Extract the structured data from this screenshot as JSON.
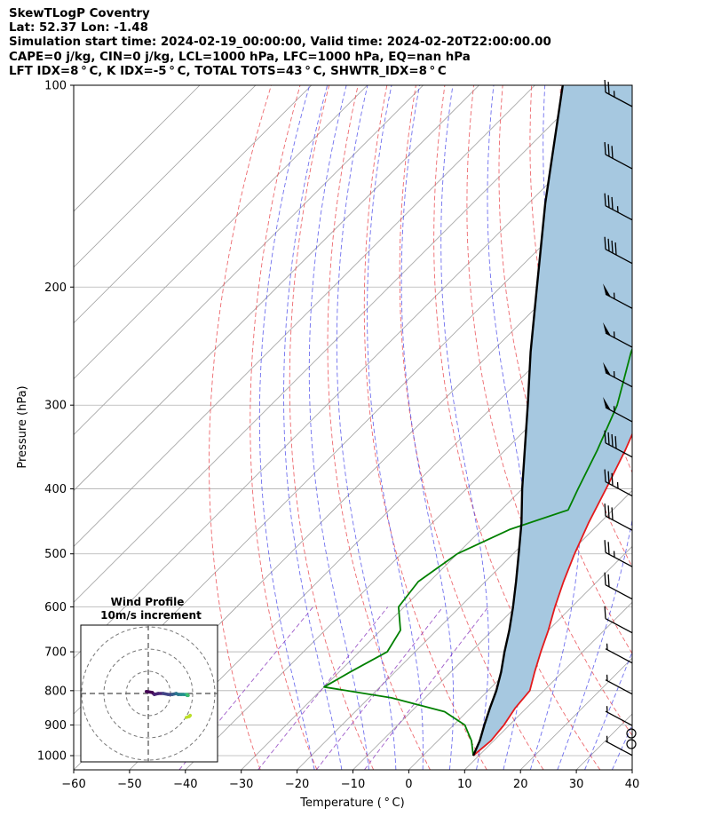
{
  "header": {
    "line1": "SkewTLogP Coventry",
    "line2": "Lat: 52.37   Lon: -1.48",
    "line3": "Simulation start time: 2024-02-19_00:00:00, Valid time: 2024-02-20T22:00:00.00",
    "line4": "CAPE=0 j/kg, CIN=0 j/kg, LCL=1000 hPa, LFC=1000 hPa, EQ=nan hPa",
    "line5": "LFT IDX=8$^\\circ$C, K IDX=-5$^\\circ$C, TOTAL TOTS=43$^\\circ$C, SHWTR_IDX=8$^\\circ$C"
  },
  "header_display": {
    "line5": "LFT IDX=8 ° C, K IDX=-5 ° C, TOTAL TOTS=43 ° C, SHWTR_IDX=8 ° C"
  },
  "chart_data": {
    "type": "line",
    "subtype": "skew-T log-P",
    "xlabel": "Temperature ( ° C)",
    "ylabel": "Pressure (hPa)",
    "xlim": [
      -60,
      40
    ],
    "ylim": [
      1050,
      100
    ],
    "yscale": "log",
    "x_ticks": [
      "−60",
      "−50",
      "−40",
      "−30",
      "−20",
      "−10",
      "0",
      "10",
      "20",
      "30",
      "40"
    ],
    "y_ticks": [
      "100",
      "200",
      "300",
      "400",
      "500",
      "600",
      "700",
      "800",
      "900",
      "1000"
    ],
    "grid": true,
    "series": [
      {
        "color": "#e41a1c",
        "points": [
          [
            1000,
            9
          ],
          [
            950,
            9.5
          ],
          [
            900,
            9
          ],
          [
            850,
            8
          ],
          [
            800,
            7.5
          ],
          [
            750,
            5
          ],
          [
            700,
            2.5
          ],
          [
            650,
            0
          ],
          [
            600,
            -3
          ],
          [
            550,
            -6
          ],
          [
            500,
            -9
          ],
          [
            450,
            -12
          ],
          [
            400,
            -15
          ],
          [
            350,
            -18.5
          ],
          [
            300,
            -23
          ],
          [
            250,
            -29
          ],
          [
            200,
            -36.5
          ],
          [
            180,
            -42
          ],
          [
            150,
            -46
          ],
          [
            120,
            -54
          ],
          [
            100,
            -60
          ]
        ]
      },
      {
        "color": "#008000",
        "points": [
          [
            1000,
            9
          ],
          [
            950,
            6
          ],
          [
            900,
            2
          ],
          [
            860,
            -4
          ],
          [
            820,
            -16
          ],
          [
            790,
            -30
          ],
          [
            750,
            -28
          ],
          [
            700,
            -25
          ],
          [
            650,
            -26.5
          ],
          [
            600,
            -31
          ],
          [
            550,
            -32
          ],
          [
            500,
            -30
          ],
          [
            460,
            -25
          ],
          [
            430,
            -18
          ],
          [
            400,
            -20
          ],
          [
            350,
            -23.5
          ],
          [
            300,
            -28
          ],
          [
            250,
            -35
          ],
          [
            200,
            -42
          ],
          [
            180,
            -42
          ],
          [
            160,
            -49
          ],
          [
            140,
            -60
          ],
          [
            120,
            -64
          ],
          [
            100,
            -76
          ]
        ]
      },
      {
        "color": "#000000",
        "points": [
          [
            1000,
            9
          ],
          [
            950,
            7.5
          ],
          [
            900,
            5.5
          ],
          [
            850,
            3.5
          ],
          [
            800,
            1.5
          ],
          [
            750,
            -1
          ],
          [
            700,
            -4
          ],
          [
            650,
            -7
          ],
          [
            600,
            -10.5
          ],
          [
            550,
            -14.5
          ],
          [
            500,
            -19
          ],
          [
            450,
            -24
          ],
          [
            400,
            -30
          ],
          [
            350,
            -36.5
          ],
          [
            300,
            -44
          ],
          [
            250,
            -53
          ],
          [
            200,
            -63.5
          ],
          [
            150,
            -77
          ],
          [
            100,
            -95
          ]
        ]
      }
    ],
    "cape_fill_color": "#a6c8e0",
    "wind_barbs": {
      "pressures": [
        105,
        130,
        155,
        180,
        210,
        240,
        275,
        310,
        350,
        400,
        450,
        510,
        570,
        640,
        710,
        790,
        880,
        975
      ],
      "speeds_kt": [
        25,
        30,
        35,
        40,
        55,
        55,
        55,
        55,
        40,
        35,
        30,
        25,
        20,
        10,
        5,
        5,
        5,
        5
      ]
    },
    "hodograph": {
      "title": "Wind Profile",
      "subtitle": "10m/s increment",
      "u": [
        -2,
        4,
        6,
        10,
        15,
        20,
        24,
        28,
        30,
        33,
        36,
        38,
        39,
        39,
        40,
        41,
        42,
        41,
        38
      ],
      "v": [
        2,
        1,
        -1,
        0,
        0,
        -1,
        -1,
        0,
        -1,
        -1,
        -1,
        -1,
        -2,
        -1,
        -2,
        -23,
        -22,
        -23,
        -24
      ]
    }
  }
}
